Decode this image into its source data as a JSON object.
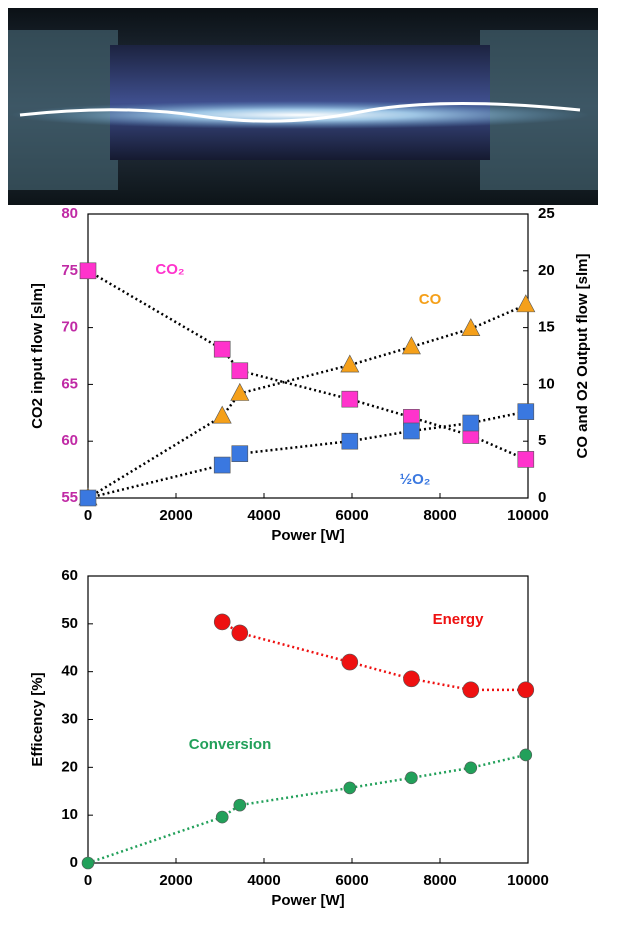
{
  "chart_data": [
    {
      "type": "line",
      "xlabel": "Power [W]",
      "ylabel": "CO2 input flow [slm]",
      "y2label": "CO and O2 Output flow [slm]",
      "x": [
        0,
        3050,
        3450,
        5950,
        7350,
        8700,
        9950
      ],
      "xlim": [
        0,
        10000
      ],
      "xticks": [
        0,
        2000,
        4000,
        6000,
        8000,
        10000
      ],
      "ylim": [
        55,
        80
      ],
      "yticks": [
        55,
        60,
        65,
        70,
        75,
        80
      ],
      "y2lim": [
        0,
        25
      ],
      "y2ticks": [
        0,
        5,
        10,
        15,
        20,
        25
      ],
      "grid": false,
      "series": [
        {
          "name": "CO₂",
          "color": "#ff33cc",
          "marker": "square",
          "values": [
            75,
            68.1,
            66.2,
            63.7,
            62.1,
            60.5,
            58.4
          ]
        },
        {
          "name": "CO",
          "color": "#f5a01a",
          "marker": "triangle",
          "axis": "y2",
          "values": [
            0,
            7.2,
            9.2,
            11.7,
            13.3,
            14.9,
            17.0
          ]
        },
        {
          "name": "½O₂",
          "color": "#3a78e0",
          "marker": "square",
          "axis": "y2",
          "values": [
            0,
            2.9,
            3.9,
            5.0,
            5.9,
            6.6,
            7.6
          ]
        }
      ]
    },
    {
      "type": "line",
      "xlabel": "Power [W]",
      "ylabel": "Efficency [%]",
      "x": [
        0,
        3050,
        3450,
        5950,
        7350,
        8700,
        9950
      ],
      "xlim": [
        0,
        10000
      ],
      "xticks": [
        0,
        2000,
        4000,
        6000,
        8000,
        10000
      ],
      "ylim": [
        0,
        60
      ],
      "yticks": [
        0,
        10,
        20,
        30,
        40,
        50,
        60
      ],
      "grid": false,
      "series": [
        {
          "name": "Energy",
          "color": "#ee1111",
          "marker": "circle",
          "values": [
            null,
            50.4,
            48.1,
            42.0,
            38.5,
            36.2,
            36.2
          ]
        },
        {
          "name": "Conversion",
          "color": "#22a05a",
          "marker": "circle",
          "values": [
            0,
            9.6,
            12.1,
            15.7,
            17.8,
            19.9,
            22.6
          ]
        }
      ]
    }
  ]
}
